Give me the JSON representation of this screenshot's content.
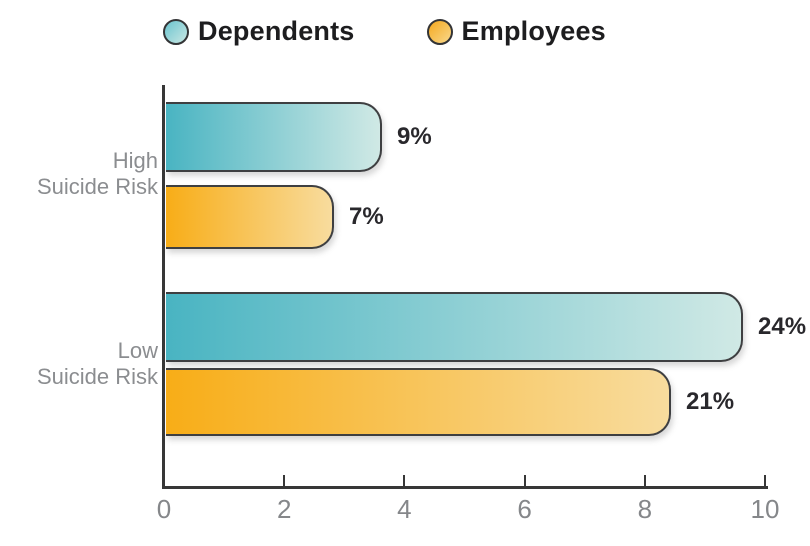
{
  "legend": {
    "items": [
      {
        "label": "Dependents",
        "swatch_color_start": "#6ac4cf",
        "swatch_color_end": "#c9e7e3"
      },
      {
        "label": "Employees",
        "swatch_color_start": "#f4a81e",
        "swatch_color_end": "#f9d98c"
      }
    ]
  },
  "chart_data": {
    "type": "bar",
    "orientation": "horizontal",
    "title": "",
    "categories": [
      "High Suicide Risk",
      "Low Suicide Risk"
    ],
    "category_lines": [
      [
        "High",
        "Suicide Risk"
      ],
      [
        "Low",
        "Suicide Risk"
      ]
    ],
    "series": [
      {
        "name": "Dependents",
        "values": [
          3.6,
          9.6
        ],
        "percent": [
          9,
          24
        ],
        "data_labels": [
          "9%",
          "24%"
        ],
        "bar_color_start": "#49b4c2",
        "bar_color_end": "#d0e9e5"
      },
      {
        "name": "Employees",
        "values": [
          2.8,
          8.4
        ],
        "percent": [
          7,
          21
        ],
        "data_labels": [
          "7%",
          "21%"
        ],
        "bar_color_start": "#f8ad17",
        "bar_color_end": "#f8dc9e"
      }
    ],
    "xlim": [
      0,
      10
    ],
    "xticks": [
      0,
      2,
      4,
      6,
      8,
      10
    ],
    "grid": false,
    "legend_position": "top",
    "bar_outline_color": "#3e3f41",
    "axis_color": "#373737",
    "data_label_color": "#29282c",
    "category_label_color": "#8b8d90",
    "tick_label_color": "#85878a"
  }
}
